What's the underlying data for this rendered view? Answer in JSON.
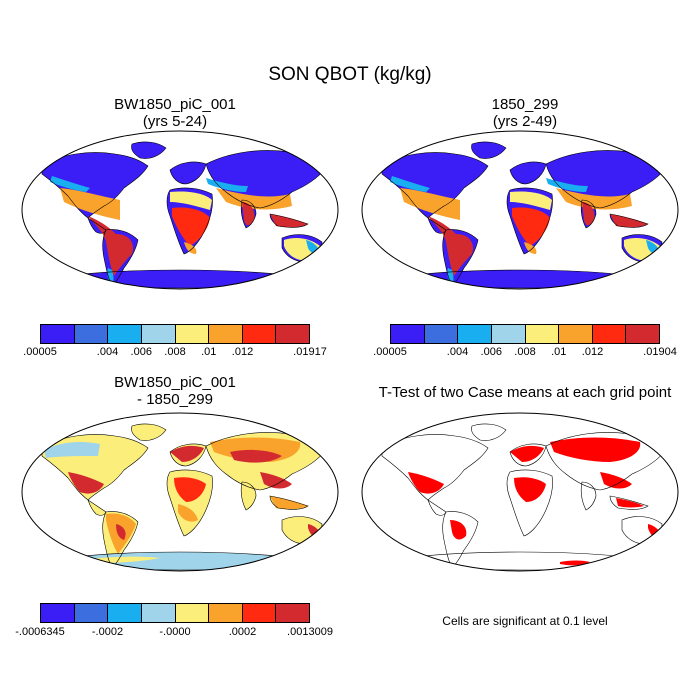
{
  "figure": {
    "title": "SON QBOT (kg/kg)"
  },
  "panels": [
    {
      "id": "case",
      "title_line1": "BW1850_piC_001",
      "title_line2": "(yrs 5-24)",
      "colorbar": {
        "colors": [
          "#3b1ef5",
          "#3d6ee0",
          "#18aef0",
          "#9fd4ea",
          "#fcee7a",
          "#f9a22c",
          "#ff2a10",
          "#d32a30"
        ],
        "labels": [
          ".00005",
          ".004",
          ".006",
          ".008",
          ".01",
          ".012",
          ".01917"
        ]
      }
    },
    {
      "id": "control",
      "title_line1": "1850_299",
      "title_line2": "(yrs 2-49)",
      "colorbar": {
        "colors": [
          "#3b1ef5",
          "#3d6ee0",
          "#18aef0",
          "#9fd4ea",
          "#fcee7a",
          "#f9a22c",
          "#ff2a10",
          "#d32a30"
        ],
        "labels": [
          ".00005",
          ".004",
          ".006",
          ".008",
          ".01",
          ".012",
          ".01904"
        ]
      }
    },
    {
      "id": "difference",
      "title_line1": "BW1850_piC_001",
      "title_line2": "- 1850_299",
      "colorbar": {
        "colors": [
          "#3b1ef5",
          "#3d6ee0",
          "#18aef0",
          "#9fd4ea",
          "#fcee7a",
          "#f9a22c",
          "#ff2a10",
          "#d32a30"
        ],
        "labels": [
          "-.0006345",
          "-.0002",
          "-.0000",
          ".0002",
          ".0013009"
        ]
      }
    },
    {
      "id": "ttest",
      "title_line1": "T-Test of two Case means at each grid point",
      "note": "Cells are significant at 0.1 level",
      "sig_color": "#ff0000"
    }
  ]
}
